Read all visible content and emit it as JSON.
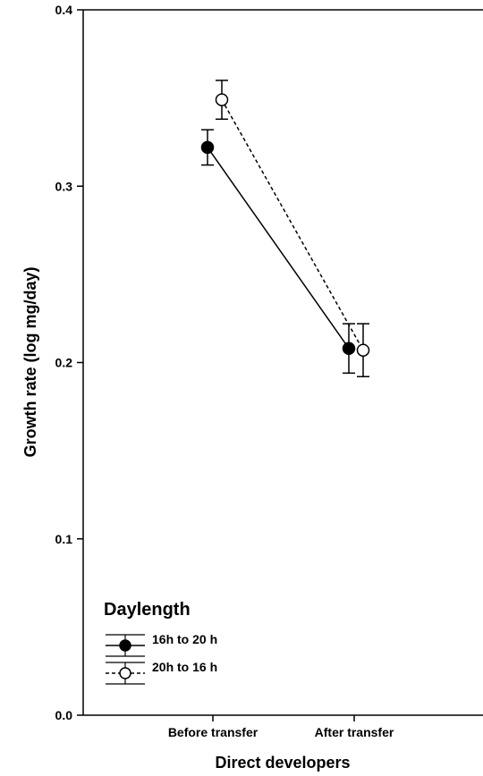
{
  "chart_data": {
    "type": "line",
    "title": "",
    "xlabel": "Direct developers",
    "ylabel": "Growth rate (log mg/day)",
    "categories": [
      "Before transfer",
      "After transfer"
    ],
    "ylim": [
      0,
      0.4
    ],
    "yticks": [
      "0.0",
      "0.1",
      "0.2",
      "0.3",
      "0.4"
    ],
    "legend": {
      "title": "Daylength",
      "placement": "bottom-left"
    },
    "series": [
      {
        "name": "16h to 20 h",
        "marker": "filled-circle",
        "line": "solid",
        "values": [
          0.322,
          0.208
        ],
        "errors": [
          0.01,
          0.014
        ]
      },
      {
        "name": "20h to 16 h",
        "marker": "open-circle",
        "line": "dashed",
        "values": [
          0.349,
          0.207
        ],
        "errors": [
          0.011,
          0.015
        ]
      }
    ]
  }
}
